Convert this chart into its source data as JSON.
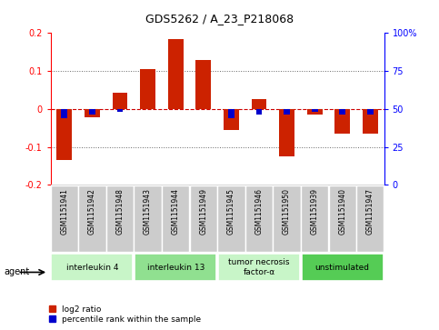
{
  "title": "GDS5262 / A_23_P218068",
  "samples": [
    "GSM1151941",
    "GSM1151942",
    "GSM1151948",
    "GSM1151943",
    "GSM1151944",
    "GSM1151949",
    "GSM1151945",
    "GSM1151946",
    "GSM1151950",
    "GSM1151939",
    "GSM1151940",
    "GSM1151947"
  ],
  "log2_ratio": [
    -0.135,
    -0.022,
    0.042,
    0.105,
    0.185,
    0.13,
    -0.055,
    0.025,
    -0.125,
    -0.015,
    -0.065,
    -0.065
  ],
  "pct_rank": [
    44,
    46,
    48,
    50,
    50,
    50,
    44,
    46,
    46,
    48,
    46,
    46
  ],
  "groups": [
    {
      "label": "interleukin 4",
      "start": 0,
      "end": 3,
      "color": "#c8f5c8"
    },
    {
      "label": "interleukin 13",
      "start": 3,
      "end": 6,
      "color": "#90e090"
    },
    {
      "label": "tumor necrosis\nfactor-α",
      "start": 6,
      "end": 9,
      "color": "#c8f5c8"
    },
    {
      "label": "unstimulated",
      "start": 9,
      "end": 12,
      "color": "#55cc55"
    }
  ],
  "ylim": [
    -0.2,
    0.2
  ],
  "y2lim": [
    0,
    100
  ],
  "bar_width": 0.55,
  "red_bar_color": "#cc2200",
  "blue_bar_color": "#0000cc",
  "background_color": "#ffffff",
  "plot_bg_color": "#ffffff",
  "grid_color": "#666666",
  "zero_line_color": "#cc0000",
  "sample_box_color": "#cccccc"
}
